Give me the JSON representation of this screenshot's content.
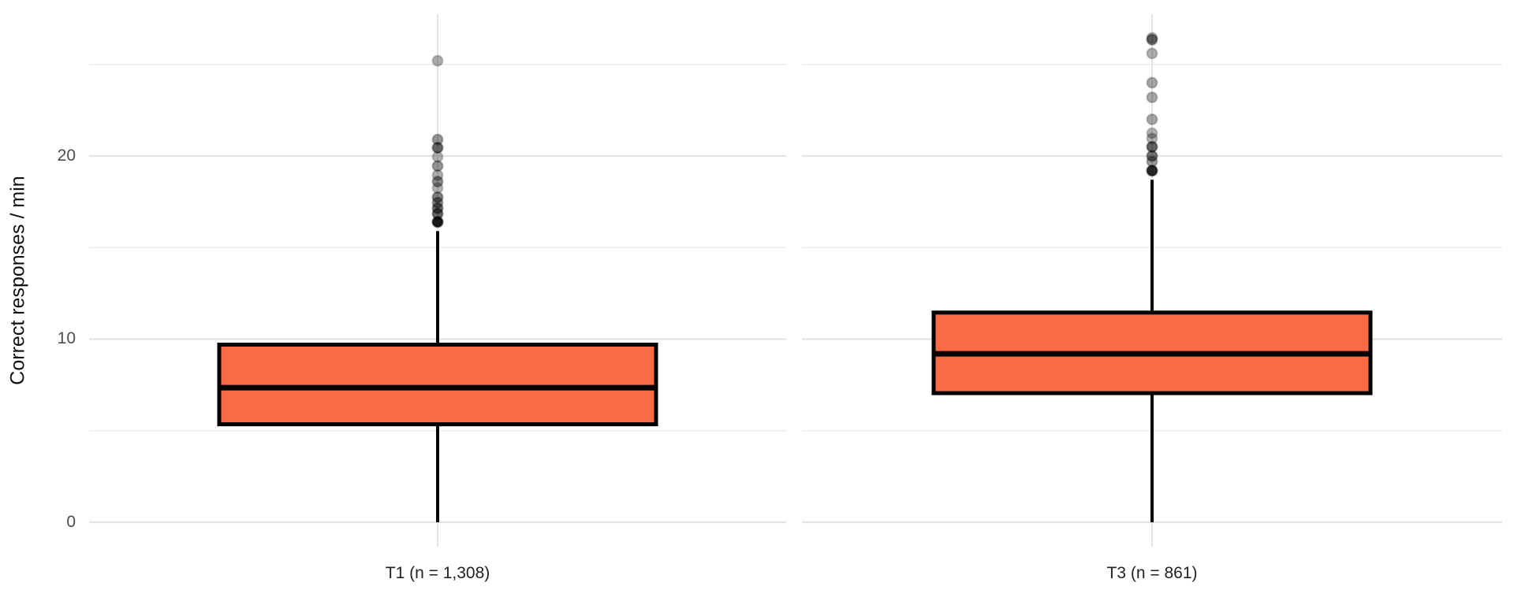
{
  "chart_data": {
    "type": "boxplot",
    "title": "",
    "xlabel": "",
    "ylabel": "Correct responses / min",
    "y_axis": {
      "ticks": [
        0,
        10,
        20
      ],
      "minor_ticks": [
        5,
        15,
        25
      ],
      "tick_labels": [
        "0",
        "10",
        "20"
      ],
      "ylim": [
        0,
        27.5
      ],
      "grid": "horizontal-major-and-minor, vertical line at each category"
    },
    "legend": "none",
    "panels": [
      {
        "label": "T1 (n = 1,308)",
        "n": 1308,
        "box": {
          "q1": 5.35,
          "median": 7.35,
          "q3": 9.7,
          "whisker_low": 0,
          "whisker_high": 15.9
        },
        "outliers": [
          {
            "v": 25.2,
            "a": 0.32
          },
          {
            "v": 20.9,
            "a": 0.42
          },
          {
            "v": 20.45,
            "a": 0.6
          },
          {
            "v": 19.95,
            "a": 0.3
          },
          {
            "v": 19.45,
            "a": 0.42
          },
          {
            "v": 18.95,
            "a": 0.32
          },
          {
            "v": 18.6,
            "a": 0.45
          },
          {
            "v": 18.25,
            "a": 0.3
          },
          {
            "v": 17.75,
            "a": 0.5
          },
          {
            "v": 17.45,
            "a": 0.45
          },
          {
            "v": 17.15,
            "a": 0.55
          },
          {
            "v": 16.85,
            "a": 0.6
          },
          {
            "v": 16.4,
            "a": 0.9
          }
        ]
      },
      {
        "label": "T3 (n = 861)",
        "n": 861,
        "box": {
          "q1": 7.05,
          "median": 9.2,
          "q3": 11.45,
          "whisker_low": 0,
          "whisker_high": 18.7
        },
        "outliers": [
          {
            "v": 26.45,
            "a": 0.3
          },
          {
            "v": 26.35,
            "a": 0.5
          },
          {
            "v": 25.6,
            "a": 0.32
          },
          {
            "v": 24.0,
            "a": 0.35
          },
          {
            "v": 23.2,
            "a": 0.35
          },
          {
            "v": 22.0,
            "a": 0.35
          },
          {
            "v": 21.25,
            "a": 0.3
          },
          {
            "v": 20.95,
            "a": 0.3
          },
          {
            "v": 20.5,
            "a": 0.62
          },
          {
            "v": 20.0,
            "a": 0.55
          },
          {
            "v": 19.7,
            "a": 0.4
          },
          {
            "v": 19.2,
            "a": 0.85
          }
        ]
      }
    ],
    "colors": {
      "box_fill": "#FA6A44",
      "box_stroke": "#000000",
      "median_stroke": "#000000",
      "whisker_stroke": "#000000",
      "outlier": "#000000",
      "grid_major": "#E4E4E4",
      "grid_minor": "#EDEDED",
      "category_gridline": "#E6E6E6",
      "axis_tick_text": "#4D4D4D",
      "axis_label_text": "#222222",
      "background": "#FFFFFF"
    }
  }
}
